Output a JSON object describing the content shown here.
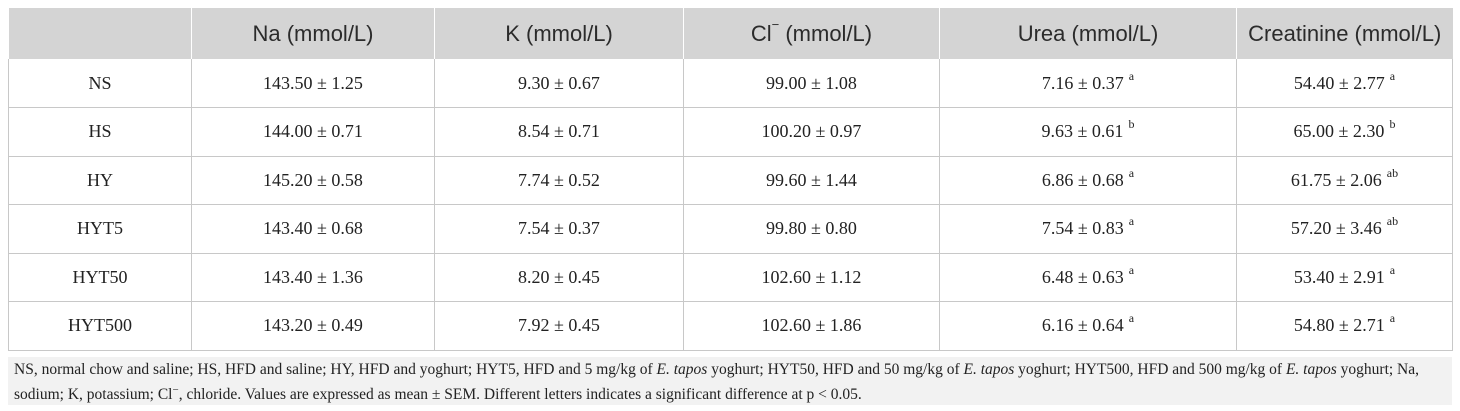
{
  "table": {
    "headers": [
      {
        "label": "",
        "sup": ""
      },
      {
        "label": "Na (mmol/L)",
        "sup": ""
      },
      {
        "label": "K (mmol/L)",
        "sup": ""
      },
      {
        "label": "Cl",
        "sup": "−",
        "suffix": " (mmol/L)"
      },
      {
        "label": "Urea (mmol/L)",
        "sup": ""
      },
      {
        "label": "Creatinine (mmol/L)",
        "sup": ""
      }
    ],
    "rows": [
      {
        "group": "NS",
        "cells": [
          {
            "value": "143.50 ± 1.25",
            "sig": ""
          },
          {
            "value": "9.30 ± 0.67",
            "sig": ""
          },
          {
            "value": "99.00 ± 1.08",
            "sig": ""
          },
          {
            "value": "7.16 ± 0.37",
            "sig": "a"
          },
          {
            "value": "54.40 ± 2.77",
            "sig": "a"
          }
        ]
      },
      {
        "group": "HS",
        "cells": [
          {
            "value": "144.00 ± 0.71",
            "sig": ""
          },
          {
            "value": "8.54 ± 0.71",
            "sig": ""
          },
          {
            "value": "100.20 ± 0.97",
            "sig": ""
          },
          {
            "value": "9.63 ± 0.61",
            "sig": "b"
          },
          {
            "value": "65.00 ± 2.30",
            "sig": "b"
          }
        ]
      },
      {
        "group": "HY",
        "cells": [
          {
            "value": "145.20 ± 0.58",
            "sig": ""
          },
          {
            "value": "7.74 ± 0.52",
            "sig": ""
          },
          {
            "value": "99.60 ± 1.44",
            "sig": ""
          },
          {
            "value": "6.86 ± 0.68",
            "sig": "a"
          },
          {
            "value": "61.75 ± 2.06",
            "sig": "ab"
          }
        ]
      },
      {
        "group": "HYT5",
        "cells": [
          {
            "value": "143.40 ± 0.68",
            "sig": ""
          },
          {
            "value": "7.54 ± 0.37",
            "sig": ""
          },
          {
            "value": "99.80 ± 0.80",
            "sig": ""
          },
          {
            "value": "7.54 ± 0.83",
            "sig": "a"
          },
          {
            "value": "57.20 ± 3.46",
            "sig": "ab"
          }
        ]
      },
      {
        "group": "HYT50",
        "cells": [
          {
            "value": "143.40 ± 1.36",
            "sig": ""
          },
          {
            "value": "8.20 ± 0.45",
            "sig": ""
          },
          {
            "value": "102.60 ± 1.12",
            "sig": ""
          },
          {
            "value": "6.48 ± 0.63",
            "sig": "a"
          },
          {
            "value": "53.40 ± 2.91",
            "sig": "a"
          }
        ]
      },
      {
        "group": "HYT500",
        "cells": [
          {
            "value": "143.20 ± 0.49",
            "sig": ""
          },
          {
            "value": "7.92 ± 0.45",
            "sig": ""
          },
          {
            "value": "102.60 ± 1.86",
            "sig": ""
          },
          {
            "value": "6.16 ± 0.64",
            "sig": "a"
          },
          {
            "value": "54.80 ± 2.71",
            "sig": "a"
          }
        ]
      }
    ]
  },
  "footnote": {
    "segments": [
      {
        "text": "NS, normal chow and saline; HS, HFD and saline; HY, HFD and yoghurt; HYT5, HFD and 5 mg/kg of ",
        "italic": false
      },
      {
        "text": "E. tapos",
        "italic": true
      },
      {
        "text": " yoghurt; HYT50, HFD and 50 mg/kg of ",
        "italic": false
      },
      {
        "text": "E. tapos",
        "italic": true
      },
      {
        "text": " yoghurt; HYT500, HFD and 500 mg/kg of ",
        "italic": false
      },
      {
        "text": "E. tapos",
        "italic": true
      },
      {
        "text": " yoghurt; Na, sodium; K, potassium; Cl",
        "italic": false
      },
      {
        "text": "−",
        "italic": false,
        "sup": true
      },
      {
        "text": ", chloride. Values are expressed as mean ± SEM. Different letters indicates a significant difference at p < 0.05.",
        "italic": false
      }
    ]
  },
  "colors": {
    "header_bg": "#d4d4d4",
    "footnote_bg": "#f2f2f2",
    "grid_line": "#c8c8c8",
    "text": "#222222"
  }
}
